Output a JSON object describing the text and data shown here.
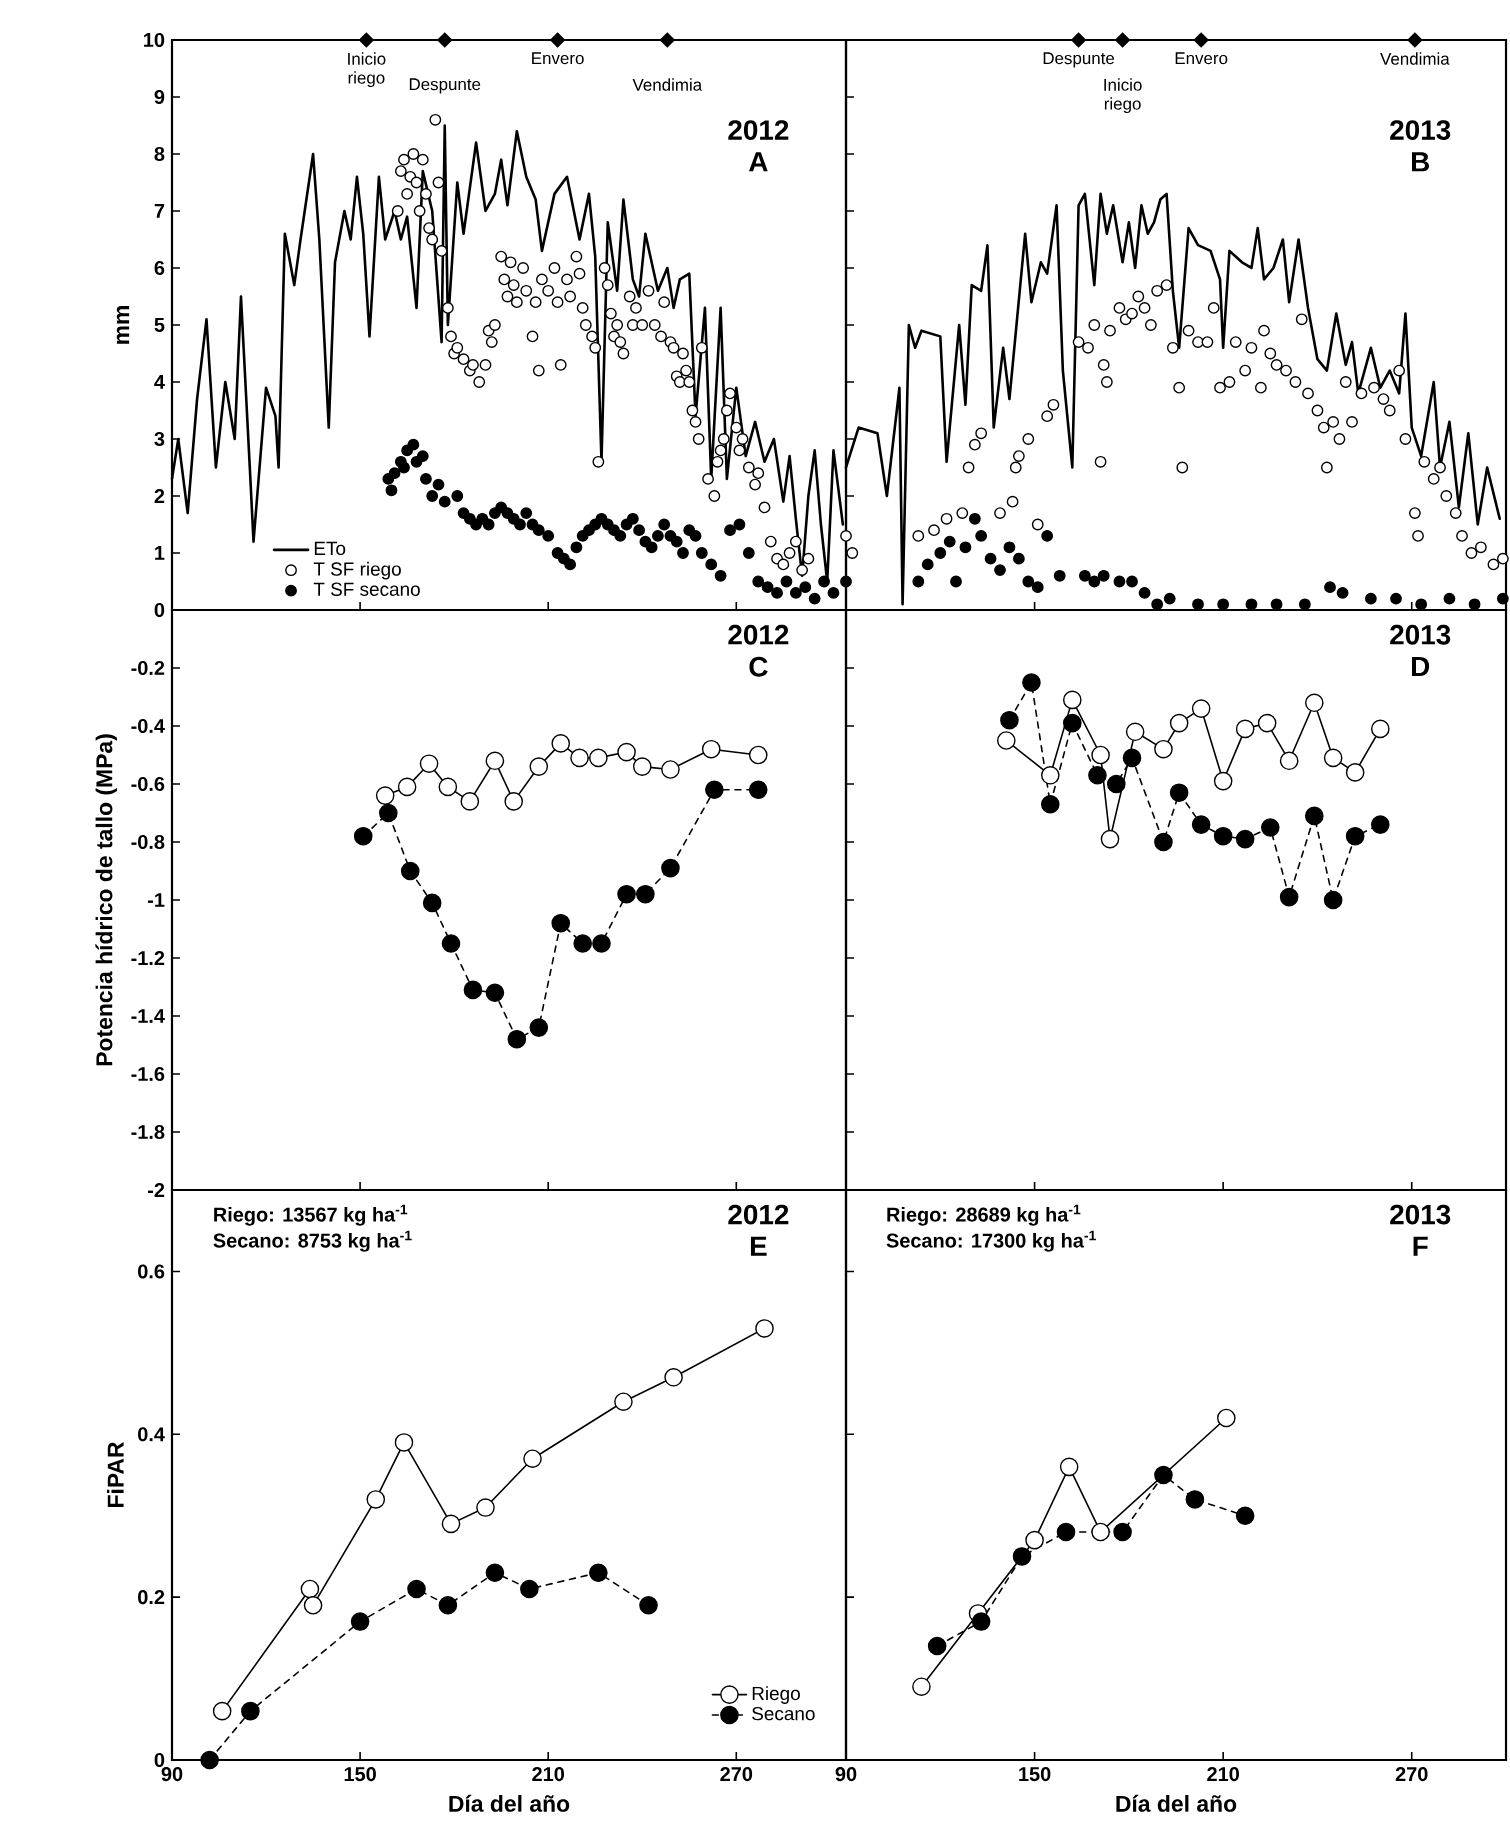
{
  "chart_data": [
    {
      "type": "line",
      "title": "2012",
      "subtitle": "A",
      "ylabel": "mm",
      "xlim": [
        90,
        305
      ],
      "ylim": [
        0,
        10
      ],
      "xticks": [
        90,
        150,
        210,
        270
      ],
      "yticks": [
        0,
        1,
        2,
        3,
        4,
        5,
        6,
        7,
        8,
        9,
        10
      ],
      "tick_labels": "y",
      "legend": "bottom left",
      "annotations": [
        {
          "text": "Inicio riego",
          "x": 152,
          "y": 10
        },
        {
          "text": "Despunte",
          "x": 177,
          "y": 10
        },
        {
          "text": "Envero",
          "x": 213,
          "y": 10
        },
        {
          "text": "Vendimia",
          "x": 248,
          "y": 10
        }
      ],
      "series": [
        {
          "name": "ETo",
          "type": "line",
          "marker": "none",
          "color": "#000000",
          "x": [
            90,
            92,
            95,
            98,
            101,
            104,
            107,
            110,
            112,
            115,
            116,
            120,
            123,
            124,
            126,
            129,
            131,
            135,
            137,
            140,
            142,
            145,
            147,
            149,
            151,
            153,
            156,
            158,
            161,
            163,
            165,
            168,
            170,
            173,
            176,
            177,
            178,
            181,
            183,
            187,
            190,
            193,
            195,
            197,
            200,
            203,
            206,
            208,
            212,
            216,
            220,
            223,
            225,
            227,
            229,
            232,
            234,
            237,
            239,
            241,
            245,
            248,
            250,
            252,
            255,
            257,
            260,
            262,
            265,
            267,
            270,
            273,
            276,
            279,
            282,
            285,
            287,
            289,
            291,
            293,
            295,
            297,
            299,
            301,
            304
          ],
          "values": [
            2.3,
            3.0,
            1.7,
            3.7,
            5.1,
            2.5,
            4.0,
            3.0,
            5.5,
            2.3,
            1.2,
            3.9,
            3.4,
            2.5,
            6.6,
            5.7,
            6.5,
            8.0,
            6.5,
            3.2,
            6.1,
            7.0,
            6.5,
            7.6,
            6.6,
            4.8,
            7.6,
            6.5,
            7.0,
            6.5,
            6.9,
            5.3,
            7.7,
            7.0,
            4.7,
            8.5,
            5.0,
            7.5,
            6.6,
            8.2,
            7.0,
            7.3,
            7.9,
            7.1,
            8.4,
            7.6,
            7.2,
            6.3,
            7.3,
            7.6,
            6.5,
            7.3,
            6.2,
            2.6,
            6.8,
            5.6,
            7.2,
            5.8,
            5.5,
            6.6,
            5.6,
            6.0,
            5.3,
            5.8,
            5.9,
            3.4,
            5.3,
            2.3,
            5.3,
            2.3,
            3.9,
            2.7,
            3.3,
            2.6,
            3.0,
            1.9,
            2.7,
            1.6,
            0.6,
            2.0,
            2.8,
            1.5,
            0.5,
            2.8,
            1.5
          ]
        },
        {
          "name": "T SF riego",
          "type": "scatter",
          "marker": "circle",
          "color": "#ffffff",
          "x": [
            162,
            163,
            164,
            165,
            166,
            167,
            168,
            169,
            170,
            171,
            172,
            173,
            174,
            175,
            176,
            178,
            179,
            180,
            181,
            183,
            185,
            186,
            188,
            190,
            191,
            192,
            193,
            195,
            196,
            197,
            198,
            199,
            200,
            202,
            203,
            205,
            206,
            207,
            208,
            210,
            212,
            213,
            214,
            216,
            217,
            219,
            220,
            221,
            222,
            224,
            225,
            226,
            228,
            229,
            230,
            231,
            232,
            233,
            234,
            236,
            237,
            238,
            240,
            242,
            244,
            246,
            247,
            249,
            250,
            251,
            252,
            253,
            254,
            255,
            256,
            257,
            258,
            259,
            261,
            263,
            264,
            265,
            266,
            267,
            268,
            270,
            271,
            272,
            274,
            276,
            277,
            279,
            281,
            283,
            285,
            287,
            289,
            291,
            293
          ],
          "values": [
            7.0,
            7.7,
            7.9,
            7.3,
            7.6,
            8.0,
            7.5,
            7.0,
            7.9,
            7.3,
            6.7,
            6.5,
            8.6,
            7.5,
            6.3,
            5.3,
            4.8,
            4.5,
            4.6,
            4.4,
            4.2,
            4.3,
            4.0,
            4.3,
            4.9,
            4.7,
            5.0,
            6.2,
            5.8,
            5.5,
            6.1,
            5.7,
            5.4,
            6.0,
            5.6,
            4.8,
            5.4,
            4.2,
            5.8,
            5.6,
            6.0,
            5.4,
            4.3,
            5.8,
            5.5,
            6.2,
            5.9,
            5.3,
            5.0,
            4.8,
            4.6,
            2.6,
            6.0,
            5.7,
            5.2,
            4.8,
            5.0,
            4.7,
            4.5,
            5.5,
            5.0,
            5.3,
            5.0,
            5.6,
            5.0,
            4.8,
            5.4,
            4.7,
            4.6,
            4.1,
            4.0,
            4.5,
            4.2,
            4.0,
            3.5,
            3.3,
            3.0,
            4.6,
            2.3,
            2.0,
            2.6,
            2.8,
            3.0,
            3.5,
            3.8,
            3.2,
            2.8,
            3.0,
            2.5,
            2.2,
            2.4,
            1.8,
            1.2,
            0.9,
            0.8,
            1.0,
            1.2,
            0.7,
            0.9
          ]
        },
        {
          "name": "T SF secano",
          "type": "scatter",
          "marker": "circle",
          "color": "#000000",
          "x": [
            159,
            160,
            161,
            163,
            164,
            165,
            167,
            168,
            170,
            171,
            173,
            175,
            177,
            181,
            183,
            185,
            187,
            189,
            191,
            193,
            195,
            197,
            199,
            201,
            203,
            205,
            207,
            210,
            213,
            215,
            217,
            219,
            221,
            223,
            225,
            227,
            229,
            231,
            233,
            235,
            237,
            239,
            241,
            243,
            245,
            247,
            249,
            251,
            253,
            255,
            257,
            259,
            262,
            265,
            268,
            271,
            274,
            277,
            280,
            283,
            286,
            289,
            292,
            295,
            298,
            301
          ],
          "values": [
            2.3,
            2.1,
            2.4,
            2.6,
            2.5,
            2.8,
            2.9,
            2.6,
            2.7,
            2.3,
            2.0,
            2.2,
            1.9,
            2.0,
            1.7,
            1.6,
            1.5,
            1.6,
            1.5,
            1.7,
            1.8,
            1.7,
            1.6,
            1.5,
            1.7,
            1.5,
            1.4,
            1.3,
            1.0,
            0.9,
            0.8,
            1.1,
            1.3,
            1.4,
            1.5,
            1.6,
            1.5,
            1.4,
            1.3,
            1.5,
            1.6,
            1.4,
            1.2,
            1.1,
            1.3,
            1.5,
            1.3,
            1.2,
            1.0,
            1.4,
            1.3,
            1.0,
            0.8,
            0.6,
            1.4,
            1.5,
            1.0,
            0.5,
            0.4,
            0.3,
            0.5,
            0.3,
            0.4,
            0.2,
            0.5,
            0.3
          ]
        }
      ]
    },
    {
      "type": "line",
      "title": "2013",
      "subtitle": "B",
      "xlim": [
        90,
        300
      ],
      "ylim": [
        0,
        10
      ],
      "xticks": [
        90,
        150,
        210,
        270
      ],
      "yticks": [
        0,
        1,
        2,
        3,
        4,
        5,
        6,
        7,
        8,
        9,
        10
      ],
      "tick_labels": false,
      "annotations": [
        {
          "text": "Despunte",
          "x": 164,
          "y": 10
        },
        {
          "text": "Inicio riego",
          "x": 178,
          "y": 10
        },
        {
          "text": "Envero",
          "x": 203,
          "y": 10
        },
        {
          "text": "Vendimia",
          "x": 271,
          "y": 10
        }
      ],
      "series": [
        {
          "type": "line",
          "marker": "none",
          "color": "#000000",
          "x": [
            90,
            94,
            100,
            103,
            107,
            108,
            110,
            112,
            114,
            120,
            122,
            126,
            128,
            130,
            133,
            135,
            137,
            140,
            142,
            147,
            149,
            152,
            154,
            157,
            159,
            162,
            164,
            166,
            169,
            171,
            173,
            175,
            178,
            180,
            182,
            184,
            186,
            188,
            190,
            192,
            194,
            196,
            199,
            202,
            206,
            209,
            210,
            212,
            216,
            219,
            221,
            223,
            226,
            229,
            231,
            234,
            237,
            240,
            243,
            246,
            249,
            251,
            253,
            257,
            260,
            263,
            266,
            268,
            270,
            273,
            277,
            279,
            282,
            285,
            288,
            291,
            294,
            298
          ],
          "values": [
            2.5,
            3.2,
            3.1,
            2.0,
            3.9,
            0.1,
            5.0,
            4.6,
            4.9,
            4.8,
            2.6,
            5.0,
            3.6,
            5.7,
            5.6,
            6.4,
            3.2,
            4.6,
            3.7,
            6.6,
            5.4,
            6.1,
            5.9,
            7.1,
            4.2,
            2.5,
            7.1,
            7.3,
            5.7,
            7.3,
            6.6,
            7.1,
            6.1,
            6.8,
            6.0,
            7.1,
            6.6,
            6.8,
            7.2,
            7.3,
            5.6,
            4.6,
            6.7,
            6.4,
            6.3,
            5.8,
            4.6,
            6.3,
            6.1,
            6.0,
            6.7,
            5.8,
            6.0,
            6.5,
            5.4,
            6.5,
            5.3,
            4.4,
            4.2,
            5.2,
            4.3,
            4.7,
            3.8,
            4.6,
            3.9,
            4.2,
            3.8,
            5.2,
            3.2,
            2.7,
            4.0,
            2.5,
            3.3,
            1.8,
            3.1,
            1.5,
            2.5,
            1.6
          ]
        },
        {
          "type": "scatter",
          "marker": "circle",
          "color": "#ffffff",
          "x": [
            90,
            92,
            113,
            118,
            122,
            127,
            129,
            131,
            133,
            139,
            143,
            144,
            145,
            148,
            151,
            154,
            156,
            164,
            167,
            169,
            171,
            172,
            173,
            174,
            177,
            179,
            181,
            183,
            185,
            187,
            189,
            192,
            194,
            196,
            197,
            199,
            202,
            205,
            207,
            209,
            212,
            214,
            217,
            219,
            222,
            223,
            225,
            227,
            230,
            233,
            235,
            237,
            240,
            242,
            243,
            245,
            247,
            249,
            251,
            254,
            258,
            261,
            263,
            266,
            268,
            271,
            272,
            274,
            277,
            279,
            281,
            284,
            286,
            289,
            292,
            296,
            299
          ],
          "values": [
            1.3,
            1.0,
            1.3,
            1.4,
            1.6,
            1.7,
            2.5,
            2.9,
            3.1,
            1.7,
            1.9,
            2.5,
            2.7,
            3.0,
            1.5,
            3.4,
            3.6,
            4.7,
            4.6,
            5.0,
            2.6,
            4.3,
            4.0,
            4.9,
            5.3,
            5.1,
            5.2,
            5.5,
            5.3,
            5.0,
            5.6,
            5.7,
            4.6,
            3.9,
            2.5,
            4.9,
            4.7,
            4.7,
            5.3,
            3.9,
            4.0,
            4.7,
            4.2,
            4.6,
            3.9,
            4.9,
            4.5,
            4.3,
            4.2,
            4.0,
            5.1,
            3.8,
            3.5,
            3.2,
            2.5,
            3.3,
            3.0,
            4.0,
            3.3,
            3.8,
            3.9,
            3.7,
            3.5,
            4.2,
            3.0,
            1.7,
            1.3,
            2.6,
            2.3,
            2.5,
            2.0,
            1.7,
            1.3,
            1.0,
            1.1,
            0.8,
            0.9
          ]
        },
        {
          "type": "scatter",
          "marker": "circle",
          "color": "#000000",
          "x": [
            90,
            113,
            116,
            120,
            123,
            125,
            128,
            131,
            133,
            136,
            139,
            142,
            145,
            148,
            151,
            154,
            158,
            166,
            169,
            172,
            177,
            181,
            185,
            189,
            193,
            202,
            210,
            219,
            227,
            236,
            244,
            248,
            257,
            265,
            273,
            282,
            290,
            299
          ],
          "values": [
            0.5,
            0.5,
            0.8,
            1.0,
            1.2,
            0.5,
            1.1,
            1.6,
            1.3,
            0.9,
            0.7,
            1.1,
            0.9,
            0.5,
            0.4,
            1.3,
            0.6,
            0.6,
            0.5,
            0.6,
            0.5,
            0.5,
            0.3,
            0.1,
            0.2,
            0.1,
            0.1,
            0.1,
            0.1,
            0.1,
            0.4,
            0.3,
            0.2,
            0.2,
            0.1,
            0.2,
            0.1,
            0.2
          ]
        }
      ]
    },
    {
      "type": "line",
      "title": "2012",
      "subtitle": "C",
      "ylabel": "Potencia hídrico de tallo (MPa)",
      "xlim": [
        90,
        305
      ],
      "ylim": [
        -2,
        0
      ],
      "xticks": [
        90,
        150,
        210,
        270
      ],
      "yticks": [
        -0.2,
        -0.4,
        -0.6,
        -0.8,
        -1,
        -1.2,
        -1.4,
        -1.6,
        -1.8,
        -2
      ],
      "tick_labels": "y",
      "series": [
        {
          "color": "#ffffff",
          "marker": "circle",
          "line_style": "solid",
          "x": [
            158,
            165,
            172,
            178,
            185,
            193,
            199,
            207,
            214,
            220,
            226,
            235,
            240,
            249,
            262,
            277
          ],
          "values": [
            -0.64,
            -0.61,
            -0.53,
            -0.61,
            -0.66,
            -0.52,
            -0.66,
            -0.54,
            -0.46,
            -0.51,
            -0.51,
            -0.49,
            -0.54,
            -0.55,
            -0.48,
            -0.5
          ]
        },
        {
          "color": "#000000",
          "marker": "circle",
          "line_style": "dashed",
          "x": [
            151,
            159,
            166,
            173,
            179,
            186,
            193,
            200,
            207,
            214,
            221,
            227,
            235,
            241,
            249,
            263,
            277
          ],
          "values": [
            -0.78,
            -0.7,
            -0.9,
            -1.01,
            -1.15,
            -1.31,
            -1.32,
            -1.48,
            -1.44,
            -1.08,
            -1.15,
            -1.15,
            -0.98,
            -0.98,
            -0.89,
            -0.62,
            -0.62
          ]
        }
      ]
    },
    {
      "type": "line",
      "title": "2013",
      "subtitle": "D",
      "xlim": [
        90,
        300
      ],
      "ylim": [
        -2,
        0
      ],
      "xticks": [
        90,
        150,
        210,
        270
      ],
      "yticks": [
        0,
        -0.2,
        -0.4,
        -0.6,
        -0.8,
        -1,
        -1.2,
        -1.4,
        -1.6,
        -1.8,
        -2
      ],
      "tick_labels": false,
      "series": [
        {
          "color": "#ffffff",
          "marker": "circle",
          "line_style": "solid",
          "x": [
            141,
            155,
            162,
            171,
            174,
            182,
            191,
            196,
            203,
            210,
            217,
            224,
            231,
            239,
            245,
            252,
            260
          ],
          "values": [
            -0.45,
            -0.57,
            -0.31,
            -0.5,
            -0.79,
            -0.42,
            -0.48,
            -0.39,
            -0.34,
            -0.59,
            -0.41,
            -0.39,
            -0.52,
            -0.32,
            -0.51,
            -0.56,
            -0.41
          ]
        },
        {
          "color": "#000000",
          "marker": "circle",
          "line_style": "dashed",
          "x": [
            142,
            149,
            155,
            162,
            170,
            176,
            181,
            191,
            196,
            203,
            210,
            217,
            225,
            231,
            239,
            245,
            252,
            260
          ],
          "values": [
            -0.38,
            -0.25,
            -0.67,
            -0.39,
            -0.57,
            -0.6,
            -0.51,
            -0.8,
            -0.63,
            -0.74,
            -0.78,
            -0.79,
            -0.75,
            -0.99,
            -0.71,
            -1.0,
            -0.78,
            -0.74
          ]
        }
      ]
    },
    {
      "type": "line",
      "title": "2012",
      "subtitle": "E",
      "xlabel": "Día del año",
      "ylabel": "FiPAR",
      "xlim": [
        90,
        305
      ],
      "ylim": [
        0,
        0.7
      ],
      "xticks": [
        90,
        150,
        210,
        270
      ],
      "yticks": [
        0,
        0.2,
        0.4,
        0.6
      ],
      "legend": "bottom right",
      "annotations": [
        "Riego: 13567 kg ha$^{-1}$",
        "Secano:    8753 kg ha$^{-1}$"
      ],
      "series": [
        {
          "name": "Riego",
          "color": "#ffffff",
          "marker": "circle",
          "line_style": "solid",
          "x": [
            106,
            134,
            135,
            155,
            164,
            179,
            190,
            205,
            234,
            250,
            279
          ],
          "values": [
            0.06,
            0.21,
            0.19,
            0.32,
            0.39,
            0.29,
            0.31,
            0.37,
            0.44,
            0.47,
            0.53
          ]
        },
        {
          "name": "Secano",
          "color": "#000000",
          "marker": "circle",
          "line_style": "dashed",
          "x": [
            102,
            115,
            150,
            168,
            178,
            193,
            204,
            226,
            242
          ],
          "values": [
            0.0,
            0.06,
            0.17,
            0.21,
            0.19,
            0.23,
            0.21,
            0.23,
            0.19
          ]
        }
      ]
    },
    {
      "type": "line",
      "title": "2013",
      "subtitle": "F",
      "xlabel": "Día del año",
      "xlim": [
        90,
        300
      ],
      "ylim": [
        0,
        0.7
      ],
      "xticks": [
        90,
        150,
        210,
        270
      ],
      "yticks": [
        0,
        0.2,
        0.4,
        0.6
      ],
      "tick_labels": "x",
      "annotations": [
        "Riego: 28689 kg ha$^{-1}$",
        "Secano: 17300 kg ha$^{-1}$"
      ],
      "series": [
        {
          "color": "#ffffff",
          "marker": "circle",
          "line_style": "solid",
          "x": [
            114,
            132,
            150,
            161,
            171,
            211
          ],
          "values": [
            0.09,
            0.18,
            0.27,
            0.36,
            0.28,
            0.42
          ]
        },
        {
          "color": "#000000",
          "marker": "circle",
          "line_style": "dashed",
          "x": [
            119,
            133,
            146,
            160,
            178,
            191,
            201,
            217
          ],
          "values": [
            0.14,
            0.17,
            0.25,
            0.28,
            0.28,
            0.35,
            0.32,
            0.3
          ]
        }
      ]
    }
  ]
}
